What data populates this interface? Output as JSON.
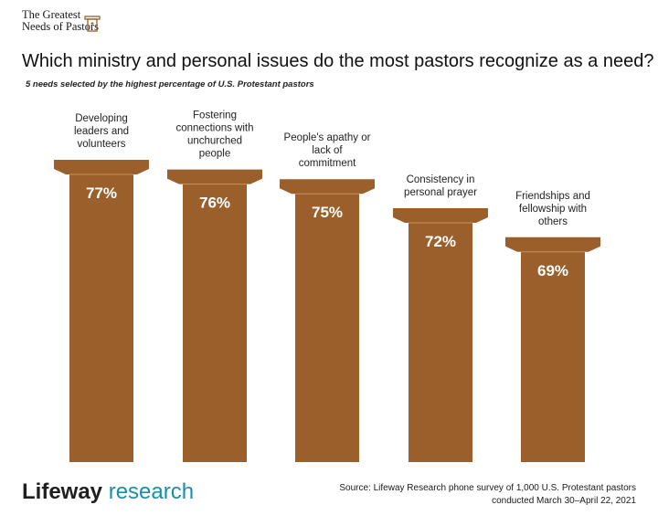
{
  "brand": {
    "line1": "The Greatest",
    "line2": "Needs of Pastors"
  },
  "title": "Which ministry and personal issues do the most pastors recognize as a need?",
  "subtitle": "5 needs selected by the highest percentage of U.S. Protestant pastors",
  "chart_data": {
    "type": "bar",
    "categories": [
      [
        "Developing",
        "leaders and",
        "volunteers"
      ],
      [
        "Fostering",
        "connections with",
        "unchurched",
        "people"
      ],
      [
        "People's apathy or",
        "lack of",
        "commitment"
      ],
      [
        "Consistency in",
        "personal prayer"
      ],
      [
        "Friendships and",
        "fellowship with",
        "others"
      ]
    ],
    "values": [
      77,
      76,
      75,
      72,
      69
    ],
    "value_labels": [
      "77%",
      "76%",
      "75%",
      "72%",
      "69%"
    ],
    "unit": "%",
    "ylim": [
      0,
      100
    ],
    "grid": false,
    "legend": "none",
    "color": "#9a5f2a"
  },
  "footer": {
    "logo_word": "Lifeway",
    "logo_research": " research",
    "source_line1": "Source: Lifeway Research phone survey of 1,000 U.S. Protestant pastors",
    "source_line2": "conducted March 30–April 22, 2021"
  }
}
